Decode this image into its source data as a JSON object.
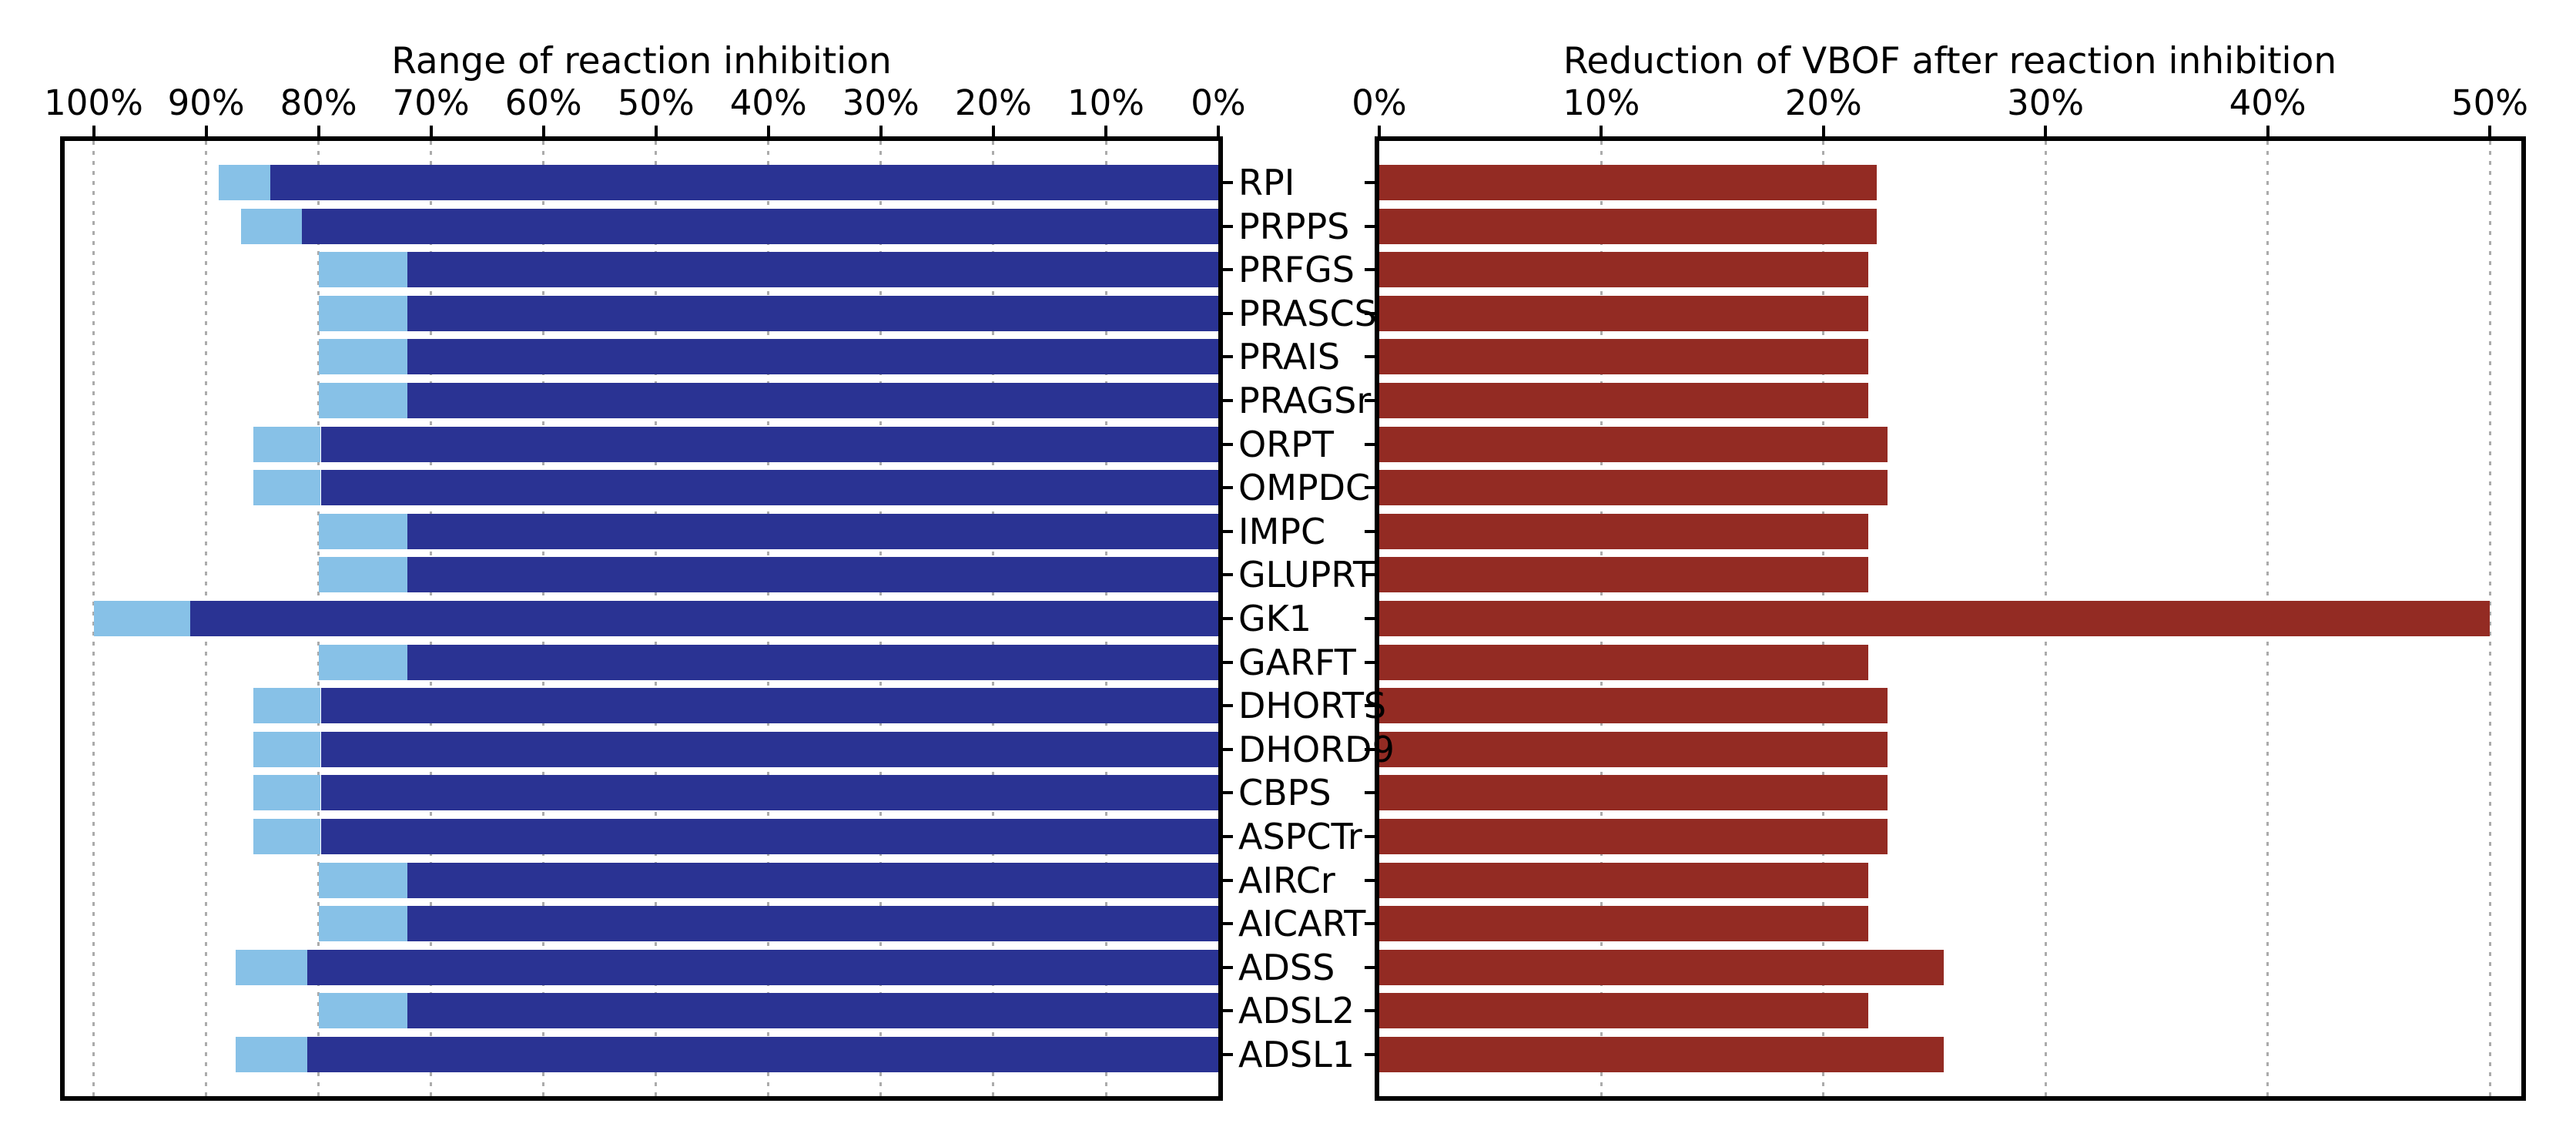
{
  "figure": {
    "background_color": "#ffffff",
    "left_panel_title": "Range of reaction inhibition",
    "right_panel_title": "Reduction of VBOF after reaction inhibition"
  },
  "chart_data": [
    {
      "panel": "left",
      "type": "bar",
      "orientation": "horizontal",
      "title": "Range of reaction inhibition",
      "axis_position": "top",
      "xlim": [
        100,
        0
      ],
      "tick_labels": [
        "100%",
        "90%",
        "80%",
        "70%",
        "60%",
        "50%",
        "40%",
        "30%",
        "20%",
        "10%",
        "0%"
      ],
      "tick_values": [
        100,
        90,
        80,
        70,
        60,
        50,
        40,
        30,
        20,
        10,
        0
      ],
      "grid": "dotted-vertical",
      "categories": [
        "RPI",
        "PRPPS",
        "PRFGS",
        "PRASCS",
        "PRAIS",
        "PRAGSr",
        "ORPT",
        "OMPDC",
        "IMPC",
        "GLUPRT",
        "GK1",
        "GARFT",
        "DHORTS",
        "DHORD9",
        "CBPS",
        "ASPCTr",
        "AIRCr",
        "AICART",
        "ADSS",
        "ADSL2",
        "ADSL1"
      ],
      "series": [
        {
          "name": "inhibition lower bound (dark segment spans 0% to this value)",
          "color": "#2a3393",
          "values": [
            84.3,
            81.5,
            72.1,
            72.1,
            72.1,
            72.1,
            79.8,
            79.8,
            72.1,
            72.1,
            91.4,
            72.1,
            79.8,
            79.8,
            79.8,
            79.8,
            72.1,
            72.1,
            81.0,
            72.1,
            81.0
          ]
        },
        {
          "name": "inhibition upper bound (light tip spans lower bound to this value)",
          "color": "#87c1e7",
          "values": [
            88.9,
            86.9,
            80.0,
            80.0,
            80.0,
            80.0,
            85.8,
            85.8,
            80.0,
            80.0,
            100.0,
            80.0,
            85.8,
            85.8,
            85.8,
            85.8,
            80.0,
            80.0,
            87.4,
            80.0,
            87.4
          ]
        }
      ]
    },
    {
      "panel": "right",
      "type": "bar",
      "orientation": "horizontal",
      "title": "Reduction of VBOF after reaction inhibition",
      "axis_position": "top",
      "xlim": [
        0,
        50
      ],
      "tick_labels": [
        "0%",
        "10%",
        "20%",
        "30%",
        "40%",
        "50%"
      ],
      "tick_values": [
        0,
        10,
        20,
        30,
        40,
        50
      ],
      "grid": "dotted-vertical",
      "categories": [
        "RPI",
        "PRPPS",
        "PRFGS",
        "PRASCS",
        "PRAIS",
        "PRAGSr",
        "ORPT",
        "OMPDC",
        "IMPC",
        "GLUPRT",
        "GK1",
        "GARFT",
        "DHORTS",
        "DHORD9",
        "CBPS",
        "ASPCTr",
        "AIRCr",
        "AICART",
        "ADSS",
        "ADSL2",
        "ADSL1"
      ],
      "series": [
        {
          "name": "VBOF reduction after reaction inhibition",
          "color": "#932b23",
          "values": [
            22.4,
            22.4,
            22.0,
            22.0,
            22.0,
            22.0,
            22.9,
            22.9,
            22.0,
            22.0,
            50.0,
            22.0,
            22.9,
            22.9,
            22.9,
            22.9,
            22.0,
            22.0,
            25.4,
            22.0,
            25.4
          ]
        }
      ]
    }
  ],
  "colors": {
    "dark_blue": "#2a3393",
    "light_blue": "#87c1e7",
    "red": "#932b23",
    "gridline_gray": "#ababab",
    "axis_black": "#000000"
  }
}
